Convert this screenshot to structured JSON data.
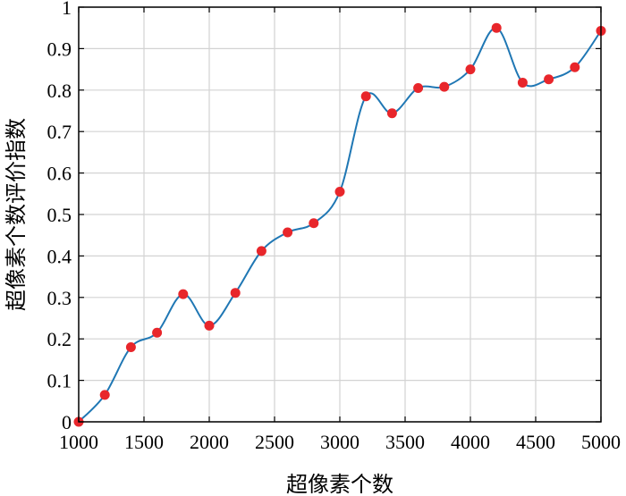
{
  "chart_data": {
    "type": "line",
    "title": "",
    "xlabel": "超像素个数",
    "ylabel": "超像素个数评价指数",
    "xlim": [
      1000,
      5000
    ],
    "ylim": [
      0,
      1
    ],
    "xticks": [
      1000,
      1500,
      2000,
      2500,
      3000,
      3500,
      4000,
      4500,
      5000
    ],
    "yticks": [
      0,
      0.1,
      0.2,
      0.3,
      0.4,
      0.5,
      0.6,
      0.7,
      0.8,
      0.9,
      1
    ],
    "ytick_labels": [
      "0",
      "0.1",
      "0.2",
      "0.3",
      "0.4",
      "0.5",
      "0.6",
      "0.7",
      "0.8",
      "0.9",
      "1"
    ],
    "grid": true,
    "curve": "smooth spline",
    "series": [
      {
        "x": [
          1000,
          1200,
          1400,
          1600,
          1800,
          2000,
          2200,
          2400,
          2600,
          2800,
          3000,
          3200,
          3400,
          3600,
          3800,
          4000,
          4200,
          4400,
          4600,
          4800,
          5000
        ],
        "values": [
          0.0,
          0.065,
          0.18,
          0.215,
          0.308,
          0.232,
          0.311,
          0.412,
          0.457,
          0.479,
          0.555,
          0.785,
          0.744,
          0.805,
          0.808,
          0.85,
          0.95,
          0.818,
          0.826,
          0.855,
          0.943
        ]
      }
    ],
    "colors": {
      "line": "#1f77b4",
      "marker": "#e8262b",
      "grid": "#d3d3d3",
      "axes": "#000000"
    }
  }
}
